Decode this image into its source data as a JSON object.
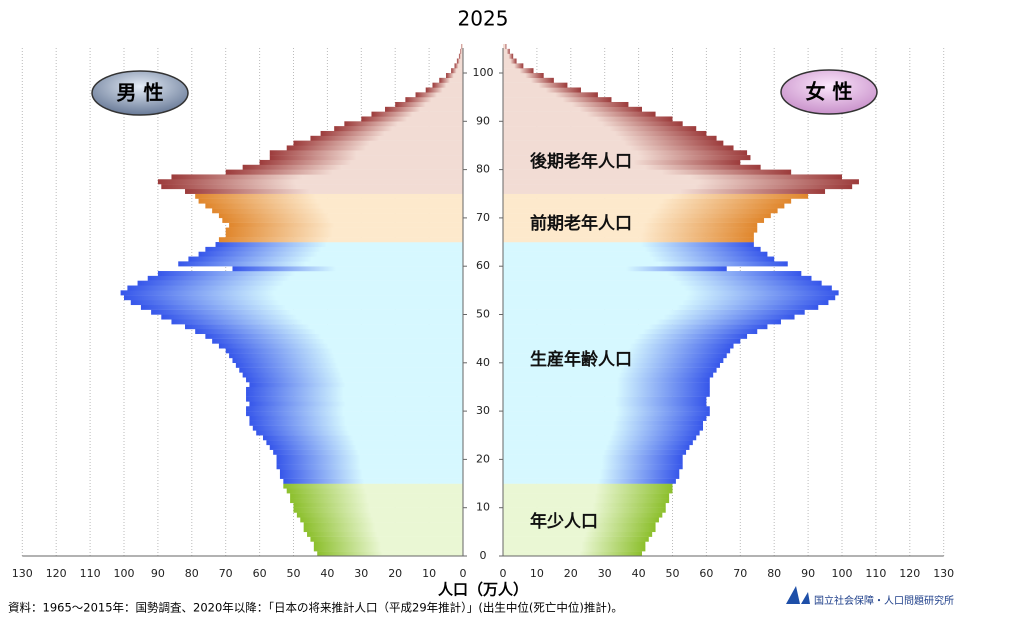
{
  "chart_data": {
    "type": "population-pyramid",
    "title": "2025",
    "categories": [
      0,
      null,
      null,
      null,
      null,
      null,
      null,
      null,
      null,
      null,
      10,
      null,
      null,
      null,
      null,
      null,
      null,
      null,
      null,
      null,
      20,
      null,
      null,
      null,
      null,
      null,
      null,
      null,
      null,
      null,
      30,
      null,
      null,
      null,
      null,
      null,
      null,
      null,
      null,
      null,
      40,
      null,
      null,
      null,
      null,
      null,
      null,
      null,
      null,
      null,
      50,
      null,
      null,
      null,
      null,
      null,
      null,
      null,
      null,
      null,
      60,
      null,
      null,
      null,
      null,
      null,
      null,
      null,
      null,
      null,
      70,
      null,
      null,
      null,
      null,
      null,
      null,
      null,
      null,
      null,
      80,
      null,
      null,
      null,
      null,
      null,
      null,
      null,
      null,
      null,
      90,
      null,
      null,
      null,
      null,
      null,
      null,
      null,
      null,
      null,
      100,
      null,
      null,
      null,
      null,
      null
    ],
    "series": [
      {
        "name": "男 性",
        "color": "#5a6a86",
        "values": [
          43,
          44,
          44,
          45,
          46,
          47,
          47,
          48,
          49,
          50,
          50,
          51,
          51,
          52,
          53,
          53,
          54,
          54,
          55,
          55,
          55,
          56,
          57,
          58,
          59,
          61,
          62,
          63,
          63,
          64,
          64,
          63,
          64,
          64,
          64,
          63,
          64,
          65,
          66,
          67,
          68,
          69,
          70,
          72,
          74,
          76,
          79,
          82,
          86,
          89,
          92,
          95,
          98,
          100,
          101,
          99,
          96,
          93,
          90,
          68,
          84,
          81,
          78,
          76,
          73,
          72,
          70,
          70,
          69,
          71,
          72,
          74,
          76,
          78,
          79,
          82,
          89,
          90,
          86,
          70,
          65,
          60,
          57,
          57,
          52,
          50,
          45,
          42,
          38,
          35,
          30,
          27,
          23,
          20,
          17,
          14,
          11,
          9,
          7,
          5,
          3.5,
          2.5,
          1.8,
          1.2,
          0.8,
          0.5
        ]
      },
      {
        "name": "女 性",
        "color": "#d9a0d8",
        "values": [
          41,
          42,
          42,
          43,
          44,
          45,
          45,
          46,
          47,
          48,
          48,
          49,
          49,
          50,
          50,
          51,
          52,
          52,
          53,
          53,
          53,
          54,
          55,
          56,
          57,
          58,
          59,
          59,
          60,
          61,
          61,
          60,
          60,
          61,
          61,
          61,
          61,
          62,
          63,
          64,
          65,
          66,
          67,
          68,
          70,
          72,
          75,
          78,
          82,
          86,
          89,
          93,
          96,
          98,
          99,
          97,
          94,
          91,
          88,
          66,
          84,
          80,
          78,
          76,
          74,
          74,
          74,
          75,
          75,
          77,
          79,
          81,
          83,
          85,
          90,
          95,
          103,
          105,
          100,
          85,
          76,
          70,
          73,
          72,
          68,
          65,
          63,
          60,
          57,
          53,
          50,
          45,
          41,
          37,
          32,
          28,
          23,
          19,
          15,
          12,
          9,
          6,
          4,
          3,
          2,
          1
        ]
      }
    ],
    "groups": [
      {
        "name": "後期老年人口",
        "first": 75,
        "last": 105,
        "color": "#9c3b3b",
        "light_color": "#f2dcd4"
      },
      {
        "name": "前期老年人口",
        "first": 65,
        "last": 74,
        "color": "#e0862c",
        "light_color": "#fde9cc"
      },
      {
        "name": "生産年齢人口",
        "first": 15,
        "last": 64,
        "color": "#3656ea",
        "light_color": "#d6f8ff"
      },
      {
        "name": "年少人口",
        "first": 0,
        "last": 14,
        "color": "#8cbf2c",
        "light_color": "#eaf7d4"
      }
    ],
    "xlim": [
      0,
      130
    ],
    "xticks": [
      0,
      10,
      20,
      30,
      40,
      50,
      60,
      70,
      80,
      90,
      100,
      110,
      120,
      130
    ],
    "grid": true,
    "xlabel": "人口（万人）",
    "source": "資料：1965～2015年：国勢調査、2020年以降：「日本の将来推計人口（平成29年推計）」(出生中位(死亡中位)推計)。",
    "logo": "国立社会保障・人口問題研究所"
  }
}
